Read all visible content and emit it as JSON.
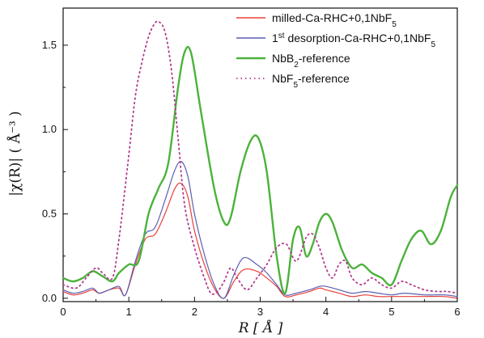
{
  "chart_data": {
    "type": "line",
    "title": "",
    "xlabel": "R [ Å ]",
    "ylabel": "|χ(R)| ( Å⁻³ )",
    "xlim": [
      0,
      6
    ],
    "ylim": [
      -0.02,
      1.72
    ],
    "x_ticks": [
      "0",
      "1",
      "2",
      "3",
      "4",
      "5",
      "6"
    ],
    "y_ticks": [
      "0.0",
      "0.5",
      "1.0",
      "1.5"
    ],
    "grid": false,
    "legend_position": "top-right",
    "series": [
      {
        "name": "milled-Ca-RHC+0,1NbF5",
        "color": "#e8413a",
        "style": "solid",
        "x": [
          0,
          0.15,
          0.3,
          0.45,
          0.55,
          0.7,
          0.85,
          0.95,
          1.1,
          1.25,
          1.4,
          1.55,
          1.7,
          1.8,
          1.9,
          2.0,
          2.15,
          2.3,
          2.45,
          2.6,
          2.75,
          2.95,
          3.1,
          3.25,
          3.38,
          3.55,
          3.75,
          3.9,
          4.0,
          4.2,
          4.4,
          4.6,
          4.8,
          5.0,
          5.2,
          5.5,
          5.8,
          6.0
        ],
        "y": [
          0.04,
          0.02,
          0.03,
          0.05,
          0.03,
          0.05,
          0.06,
          0.02,
          0.2,
          0.35,
          0.38,
          0.5,
          0.65,
          0.68,
          0.6,
          0.4,
          0.2,
          0.06,
          0.0,
          0.1,
          0.17,
          0.16,
          0.12,
          0.07,
          0.01,
          0.02,
          0.04,
          0.06,
          0.05,
          0.03,
          0.01,
          0.02,
          0.01,
          0.01,
          0.01,
          0.01,
          0.01,
          0.0
        ]
      },
      {
        "name": "1st desorption-Ca-RHC+0,1NbF5",
        "color": "#5a5fb0",
        "style": "solid",
        "x": [
          0,
          0.15,
          0.3,
          0.45,
          0.55,
          0.7,
          0.85,
          0.95,
          1.1,
          1.25,
          1.4,
          1.55,
          1.7,
          1.8,
          1.9,
          2.0,
          2.15,
          2.3,
          2.45,
          2.6,
          2.75,
          2.95,
          3.1,
          3.25,
          3.38,
          3.55,
          3.75,
          3.9,
          4.0,
          4.2,
          4.4,
          4.6,
          4.8,
          5.0,
          5.2,
          5.5,
          5.8,
          6.0
        ],
        "y": [
          0.05,
          0.03,
          0.04,
          0.06,
          0.03,
          0.05,
          0.07,
          0.02,
          0.22,
          0.38,
          0.42,
          0.58,
          0.76,
          0.81,
          0.72,
          0.5,
          0.26,
          0.08,
          0.0,
          0.14,
          0.24,
          0.2,
          0.15,
          0.08,
          0.02,
          0.03,
          0.05,
          0.07,
          0.07,
          0.05,
          0.03,
          0.04,
          0.03,
          0.02,
          0.03,
          0.02,
          0.02,
          0.01
        ]
      },
      {
        "name": "NbB2-reference",
        "color": "#4cb23c",
        "style": "solid",
        "x": [
          0,
          0.15,
          0.3,
          0.45,
          0.6,
          0.75,
          0.85,
          1.0,
          1.15,
          1.3,
          1.45,
          1.6,
          1.75,
          1.85,
          1.95,
          2.1,
          2.3,
          2.45,
          2.55,
          2.7,
          2.85,
          2.97,
          3.1,
          3.25,
          3.38,
          3.5,
          3.6,
          3.7,
          3.8,
          3.9,
          4.0,
          4.1,
          4.25,
          4.4,
          4.55,
          4.7,
          4.85,
          5.0,
          5.15,
          5.3,
          5.45,
          5.6,
          5.75,
          5.9,
          6.0
        ],
        "y": [
          0.12,
          0.1,
          0.12,
          0.16,
          0.13,
          0.1,
          0.15,
          0.2,
          0.22,
          0.5,
          0.65,
          0.8,
          1.25,
          1.46,
          1.45,
          1.1,
          0.65,
          0.45,
          0.48,
          0.75,
          0.93,
          0.95,
          0.75,
          0.25,
          0.03,
          0.35,
          0.42,
          0.25,
          0.32,
          0.45,
          0.5,
          0.45,
          0.28,
          0.18,
          0.2,
          0.15,
          0.12,
          0.08,
          0.22,
          0.35,
          0.4,
          0.32,
          0.4,
          0.6,
          0.67
        ]
      },
      {
        "name": "NbF5-reference",
        "color": "#b23a8c",
        "style": "dotted",
        "x": [
          0,
          0.2,
          0.35,
          0.5,
          0.6,
          0.75,
          0.85,
          1.0,
          1.1,
          1.2,
          1.3,
          1.38,
          1.45,
          1.55,
          1.65,
          1.75,
          1.85,
          2.0,
          2.15,
          2.25,
          2.35,
          2.45,
          2.55,
          2.65,
          2.8,
          2.95,
          3.1,
          3.25,
          3.4,
          3.55,
          3.7,
          3.8,
          3.9,
          4.0,
          4.1,
          4.2,
          4.3,
          4.4,
          4.55,
          4.7,
          4.85,
          5.0,
          5.15,
          5.3,
          5.5,
          5.7,
          5.85,
          6.0
        ],
        "y": [
          0.08,
          0.06,
          0.12,
          0.18,
          0.15,
          0.12,
          0.35,
          0.85,
          1.2,
          1.4,
          1.55,
          1.62,
          1.64,
          1.58,
          1.35,
          0.95,
          0.55,
          0.3,
          0.12,
          0.03,
          0.04,
          0.1,
          0.18,
          0.12,
          0.05,
          0.12,
          0.2,
          0.3,
          0.32,
          0.22,
          0.36,
          0.38,
          0.3,
          0.18,
          0.12,
          0.2,
          0.22,
          0.12,
          0.08,
          0.12,
          0.08,
          0.06,
          0.1,
          0.08,
          0.05,
          0.04,
          0.04,
          0.03
        ]
      }
    ]
  }
}
